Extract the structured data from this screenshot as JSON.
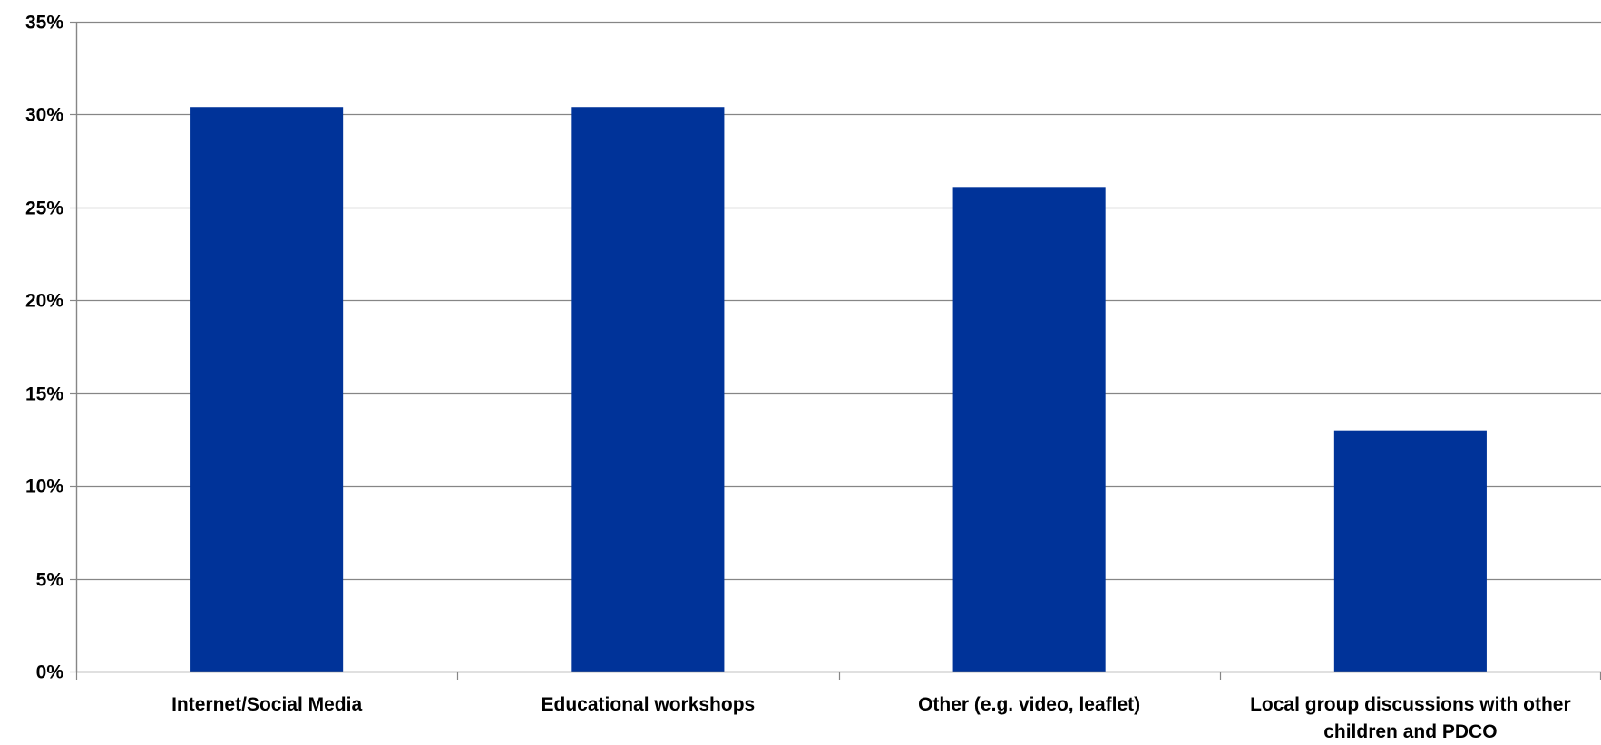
{
  "chart_data": {
    "type": "bar",
    "title": "",
    "xlabel": "",
    "ylabel": "",
    "categories": [
      [
        "Internet/Social Media"
      ],
      [
        "Educational workshops"
      ],
      [
        "Other (e.g. video, leaflet)"
      ],
      [
        "Local group discussions with other",
        "children and PDCO"
      ]
    ],
    "values": [
      30.4,
      30.4,
      26.1,
      13.0
    ],
    "ylim": [
      0,
      35
    ],
    "yticks": [
      0,
      5,
      10,
      15,
      20,
      25,
      30,
      35
    ],
    "ytick_labels": [
      "0%",
      "5%",
      "10%",
      "15%",
      "20%",
      "25%",
      "30%",
      "35%"
    ],
    "grid": true,
    "legend": "none",
    "colors": {
      "bar": "#003399",
      "grid": "#868686",
      "axis": "#868686"
    }
  }
}
